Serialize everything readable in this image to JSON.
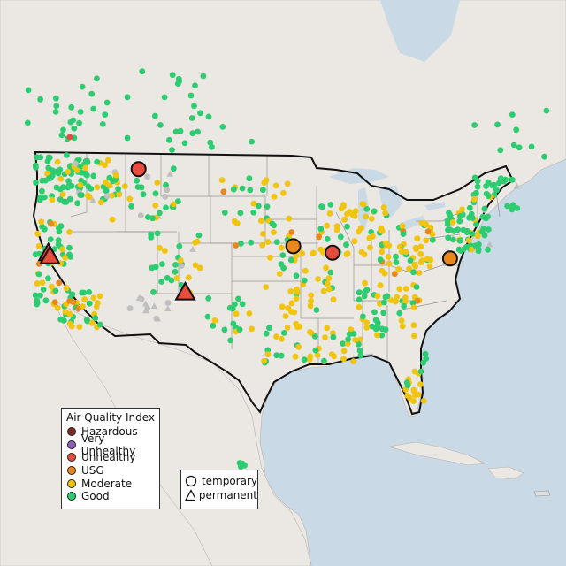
{
  "legend": {
    "title": "Air Quality Index",
    "categories": [
      {
        "key": "hazardous",
        "label": "Hazardous",
        "color": "#7e2a24"
      },
      {
        "key": "very_unhealthy",
        "label": "Very Unhealthy",
        "color": "#8f5db5"
      },
      {
        "key": "unhealthy",
        "label": "Unhealthy",
        "color": "#e74c3c"
      },
      {
        "key": "usg",
        "label": "USG",
        "color": "#e8871e"
      },
      {
        "key": "moderate",
        "label": "Moderate",
        "color": "#f1c40f"
      },
      {
        "key": "good",
        "label": "Good",
        "color": "#2ecc71"
      }
    ]
  },
  "monitor_type_legend": {
    "temporary": "temporary",
    "permanent": "permanent"
  },
  "colors": {
    "ocean": "#c9d9e6",
    "land": "#ebe7e3",
    "no_data": "#bfbfbf",
    "outline": "#111111"
  },
  "highlighted_sites": [
    {
      "category": "unhealthy",
      "type": "temporary",
      "lon": -112.4,
      "lat": 46.6
    },
    {
      "category": "unhealthy",
      "type": "permanent",
      "lon": -122.2,
      "lat": 39.9
    },
    {
      "category": "unhealthy",
      "type": "permanent",
      "lon": -122.0,
      "lat": 39.6
    },
    {
      "category": "unhealthy",
      "type": "permanent",
      "lon": -106.6,
      "lat": 35.1
    },
    {
      "category": "usg",
      "type": "temporary",
      "lon": -94.6,
      "lat": 39.1
    },
    {
      "category": "unhealthy",
      "type": "temporary",
      "lon": -90.2,
      "lat": 38.6
    },
    {
      "category": "usg",
      "type": "temporary",
      "lon": -77.0,
      "lat": 38.9
    }
  ]
}
